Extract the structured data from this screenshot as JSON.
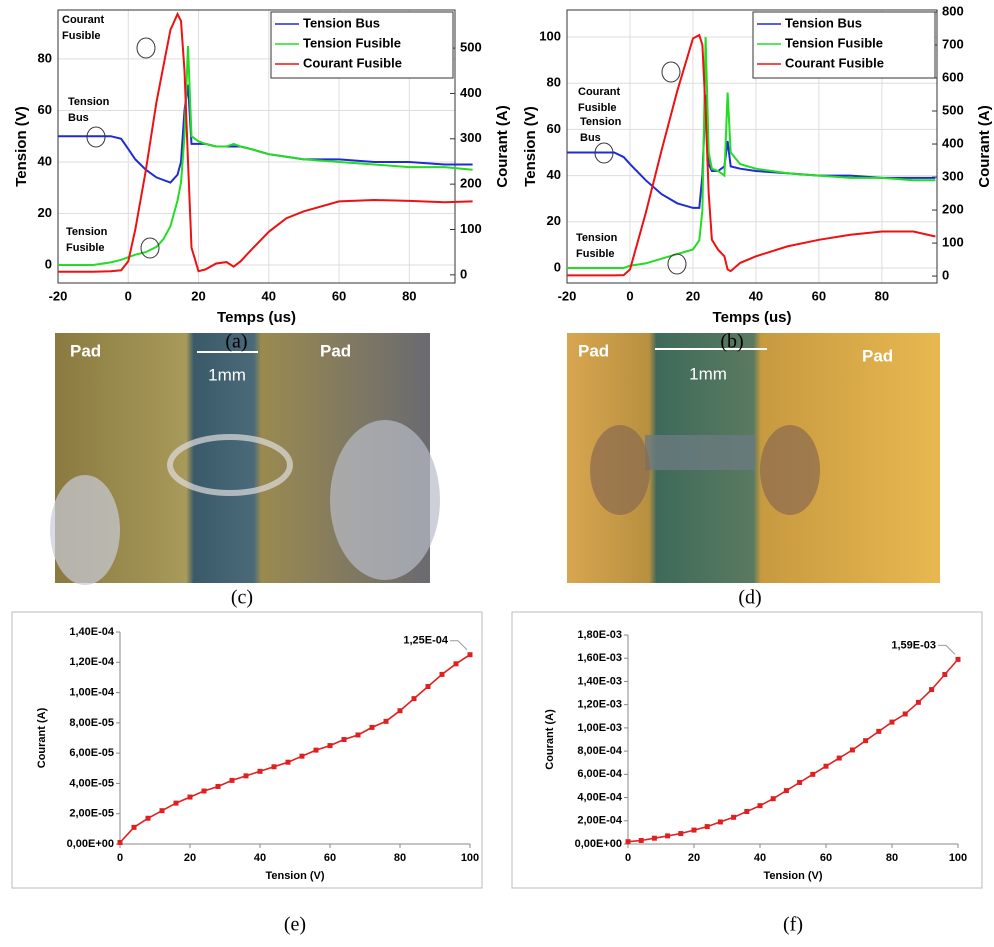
{
  "chart_data": [
    {
      "type": "line",
      "caption": "(a)",
      "xlabel": "Temps (us)",
      "ylabel": "Tension (V)",
      "y2label": "Courant (A)",
      "xlim": [
        -20,
        93
      ],
      "xticks": [
        -20,
        0,
        20,
        40,
        60,
        80
      ],
      "ylim": [
        -7,
        99
      ],
      "yticks": [
        0,
        20,
        40,
        60,
        80
      ],
      "y2lim": [
        -18,
        584
      ],
      "y2ticks": [
        0,
        100,
        200,
        300,
        400,
        500
      ],
      "grid": true,
      "legend": "upper right",
      "x": [
        -20,
        -15,
        -10,
        -5,
        -2,
        0,
        2,
        5,
        8,
        10,
        12,
        14,
        15,
        16,
        17,
        18,
        20,
        22,
        25,
        28,
        30,
        32,
        35,
        40,
        45,
        50,
        60,
        70,
        80,
        90,
        98
      ],
      "series": [
        {
          "name": "Tension Bus",
          "color": "#1f2bd6",
          "values": [
            50,
            50,
            50,
            50,
            49,
            45,
            41,
            37,
            34,
            33,
            32,
            35,
            40,
            60,
            70,
            47,
            47,
            47,
            46,
            46,
            46,
            46,
            45,
            43,
            42,
            41,
            41,
            40,
            40,
            39,
            39
          ]
        },
        {
          "name": "Tension Fusible",
          "color": "#22dd22",
          "values": [
            0,
            0,
            0,
            1,
            2,
            3,
            4,
            5,
            7,
            10,
            15,
            25,
            32,
            50,
            85,
            50,
            48,
            47,
            46,
            46,
            47,
            46,
            45,
            43,
            42,
            41,
            40,
            39,
            38,
            38,
            37
          ]
        },
        {
          "name": "Courant Fusible",
          "color": "#ee1111",
          "axis": "y2",
          "values": [
            7,
            7,
            7,
            8,
            10,
            30,
            100,
            230,
            380,
            460,
            540,
            575,
            560,
            450,
            250,
            60,
            8,
            12,
            25,
            28,
            18,
            30,
            55,
            95,
            125,
            140,
            162,
            165,
            163,
            160,
            162
          ]
        }
      ],
      "annotations": [
        "Courant Fusible",
        "Tension Bus",
        "Tension Fusible"
      ]
    },
    {
      "type": "line",
      "caption": "(b)",
      "xlabel": "Temps (us)",
      "ylabel": "Tension (V)",
      "y2label": "Courant (A)",
      "xlim": [
        -20,
        97.5
      ],
      "xticks": [
        -20,
        0,
        20,
        40,
        60,
        80
      ],
      "ylim": [
        -6.5,
        111.7
      ],
      "yticks": [
        0,
        20,
        40,
        60,
        80,
        100
      ],
      "y2lim": [
        -21,
        806
      ],
      "y2ticks": [
        0,
        100,
        200,
        300,
        400,
        500,
        600,
        700,
        800
      ],
      "grid": true,
      "legend": "upper right",
      "x": [
        -20,
        -15,
        -10,
        -5,
        -2,
        0,
        5,
        10,
        15,
        20,
        22,
        23,
        24,
        25,
        26,
        28,
        30,
        31,
        32,
        35,
        40,
        50,
        60,
        70,
        80,
        90,
        97
      ],
      "series": [
        {
          "name": "Tension Bus",
          "color": "#1f2bd6",
          "values": [
            50,
            50,
            50,
            50,
            48,
            45,
            38,
            32,
            28,
            26,
            26,
            40,
            75,
            45,
            42,
            42,
            44,
            55,
            44,
            43,
            42,
            41,
            40,
            40,
            39,
            39,
            39
          ]
        },
        {
          "name": "Tension Fusible",
          "color": "#22dd22",
          "values": [
            0,
            0,
            0,
            0,
            0,
            1,
            2,
            4,
            6,
            8,
            12,
            25,
            100,
            50,
            43,
            42,
            40,
            76,
            50,
            45,
            43,
            41,
            40,
            39,
            39,
            38,
            38
          ]
        },
        {
          "name": "Courant Fusible",
          "color": "#ee1111",
          "axis": "y2",
          "values": [
            2,
            2,
            2,
            2,
            3,
            20,
            190,
            380,
            560,
            720,
            730,
            700,
            500,
            250,
            110,
            80,
            60,
            20,
            15,
            40,
            60,
            90,
            110,
            125,
            135,
            135,
            120
          ]
        }
      ],
      "annotations": [
        "Courant Fusible",
        "Tension Bus",
        "Tension Fusible"
      ]
    },
    {
      "type": "line",
      "caption": "(e)",
      "xlabel": "Tension (V)",
      "ylabel": "Courant (A)",
      "markers": true,
      "grid": false,
      "xlim": [
        0,
        100
      ],
      "xticks": [
        0,
        20,
        40,
        60,
        80,
        100
      ],
      "ylim": [
        0,
        0.00014
      ],
      "yticks": [
        {
          "value": 0,
          "label": "0,00E+00"
        },
        {
          "value": 2e-05,
          "label": "2,00E-05"
        },
        {
          "value": 4e-05,
          "label": "4,00E-05"
        },
        {
          "value": 6e-05,
          "label": "6,00E-05"
        },
        {
          "value": 8e-05,
          "label": "8,00E-05"
        },
        {
          "value": 0.0001,
          "label": "1,00E-04"
        },
        {
          "value": 0.00012,
          "label": "1,20E-04"
        },
        {
          "value": 0.00014,
          "label": "1,40E-04"
        }
      ],
      "x": [
        0,
        4,
        8,
        12,
        16,
        20,
        24,
        28,
        32,
        36,
        40,
        44,
        48,
        52,
        56,
        60,
        64,
        68,
        72,
        76,
        80,
        84,
        88,
        92,
        96,
        100
      ],
      "series": [
        {
          "color": "#e02020",
          "values": [
            1e-06,
            1.1e-05,
            1.7e-05,
            2.2e-05,
            2.7e-05,
            3.1e-05,
            3.5e-05,
            3.8e-05,
            4.2e-05,
            4.5e-05,
            4.8e-05,
            5.1e-05,
            5.4e-05,
            5.8e-05,
            6.2e-05,
            6.5e-05,
            6.9e-05,
            7.2e-05,
            7.7e-05,
            8.1e-05,
            8.8e-05,
            9.6e-05,
            0.000104,
            0.000112,
            0.000119,
            0.000125
          ],
          "value_labels": [
            null,
            null,
            null,
            null,
            null,
            null,
            null,
            null,
            null,
            null,
            null,
            null,
            null,
            null,
            null,
            null,
            null,
            null,
            null,
            null,
            null,
            null,
            null,
            null,
            null,
            "1,25E-04"
          ]
        }
      ]
    },
    {
      "type": "line",
      "caption": "(f)",
      "xlabel": "Tension (V)",
      "ylabel": "Courant (A)",
      "markers": true,
      "grid": false,
      "xlim": [
        0,
        100
      ],
      "xticks": [
        0,
        20,
        40,
        60,
        80,
        100
      ],
      "ylim": [
        0,
        0.0018
      ],
      "yticks": [
        {
          "value": 0,
          "label": "0,00E+00"
        },
        {
          "value": 0.0002,
          "label": "2,00E-04"
        },
        {
          "value": 0.0004,
          "label": "4,00E-04"
        },
        {
          "value": 0.0006,
          "label": "6,00E-04"
        },
        {
          "value": 0.0008,
          "label": "8,00E-04"
        },
        {
          "value": 0.001,
          "label": "1,00E-03"
        },
        {
          "value": 0.0012,
          "label": "1,20E-03"
        },
        {
          "value": 0.0014,
          "label": "1,40E-03"
        },
        {
          "value": 0.0016,
          "label": "1,60E-03"
        },
        {
          "value": 0.0018,
          "label": "1,80E-03"
        }
      ],
      "x": [
        0,
        4,
        8,
        12,
        16,
        20,
        24,
        28,
        32,
        36,
        40,
        44,
        48,
        52,
        56,
        60,
        64,
        68,
        72,
        76,
        80,
        84,
        88,
        92,
        96,
        100
      ],
      "series": [
        {
          "color": "#e02020",
          "values": [
            2e-05,
            3e-05,
            5e-05,
            7e-05,
            9e-05,
            0.00012,
            0.00015,
            0.00019,
            0.00023,
            0.00028,
            0.00033,
            0.00039,
            0.00046,
            0.00053,
            0.0006,
            0.00067,
            0.00074,
            0.00081,
            0.00089,
            0.00097,
            0.00105,
            0.00112,
            0.00122,
            0.00133,
            0.00146,
            0.00159
          ],
          "value_labels": [
            null,
            null,
            null,
            null,
            null,
            null,
            null,
            null,
            null,
            null,
            null,
            null,
            null,
            null,
            null,
            null,
            null,
            null,
            null,
            null,
            null,
            null,
            null,
            null,
            null,
            "1,59E-03"
          ]
        }
      ]
    }
  ],
  "photos": [
    {
      "labels": [
        "Pad",
        "Pad"
      ],
      "scale": "1mm",
      "caption": "(c)"
    },
    {
      "labels": [
        "Pad",
        "Pad"
      ],
      "scale": "1mm",
      "caption": "(d)"
    }
  ]
}
